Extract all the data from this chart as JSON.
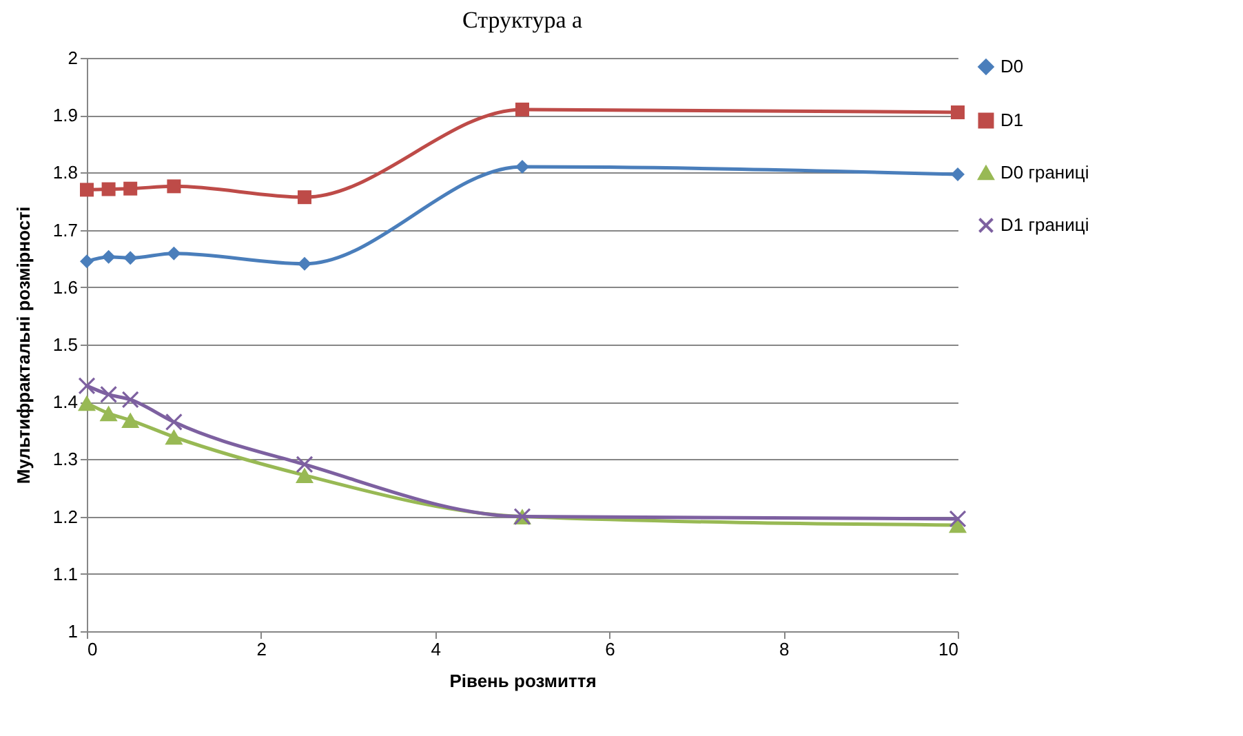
{
  "chart_data": {
    "type": "line",
    "title": "Структура a",
    "xlabel": "Рівень розмиття",
    "ylabel": "Мультифрактальні розмірності",
    "x": [
      0,
      0.25,
      0.5,
      1,
      2.5,
      5,
      10
    ],
    "series": [
      {
        "name": "D0",
        "color": "#4a7ebb",
        "marker": "diamond",
        "values": [
          1.645,
          1.653,
          1.651,
          1.659,
          1.641,
          1.81,
          1.797
        ]
      },
      {
        "name": "D1",
        "color": "#be4b48",
        "marker": "square",
        "values": [
          1.77,
          1.771,
          1.772,
          1.776,
          1.757,
          1.91,
          1.905
        ]
      },
      {
        "name": "D0 границі",
        "color": "#98b954",
        "marker": "triangle",
        "values": [
          1.398,
          1.38,
          1.368,
          1.339,
          1.272,
          1.2,
          1.185
        ]
      },
      {
        "name": "D1 границі",
        "color": "#7d60a0",
        "marker": "cross",
        "values": [
          1.428,
          1.413,
          1.404,
          1.365,
          1.291,
          1.2,
          1.196
        ]
      }
    ],
    "xlim": [
      0,
      10
    ],
    "xticks": [
      0,
      2,
      4,
      6,
      8,
      10
    ],
    "ylim": [
      1,
      2
    ],
    "yticks": [
      1,
      1.1,
      1.2,
      1.3,
      1.4,
      1.5,
      1.6,
      1.7,
      1.8,
      1.9,
      2
    ],
    "grid": "y",
    "legend": "right",
    "line_style": "solid"
  }
}
